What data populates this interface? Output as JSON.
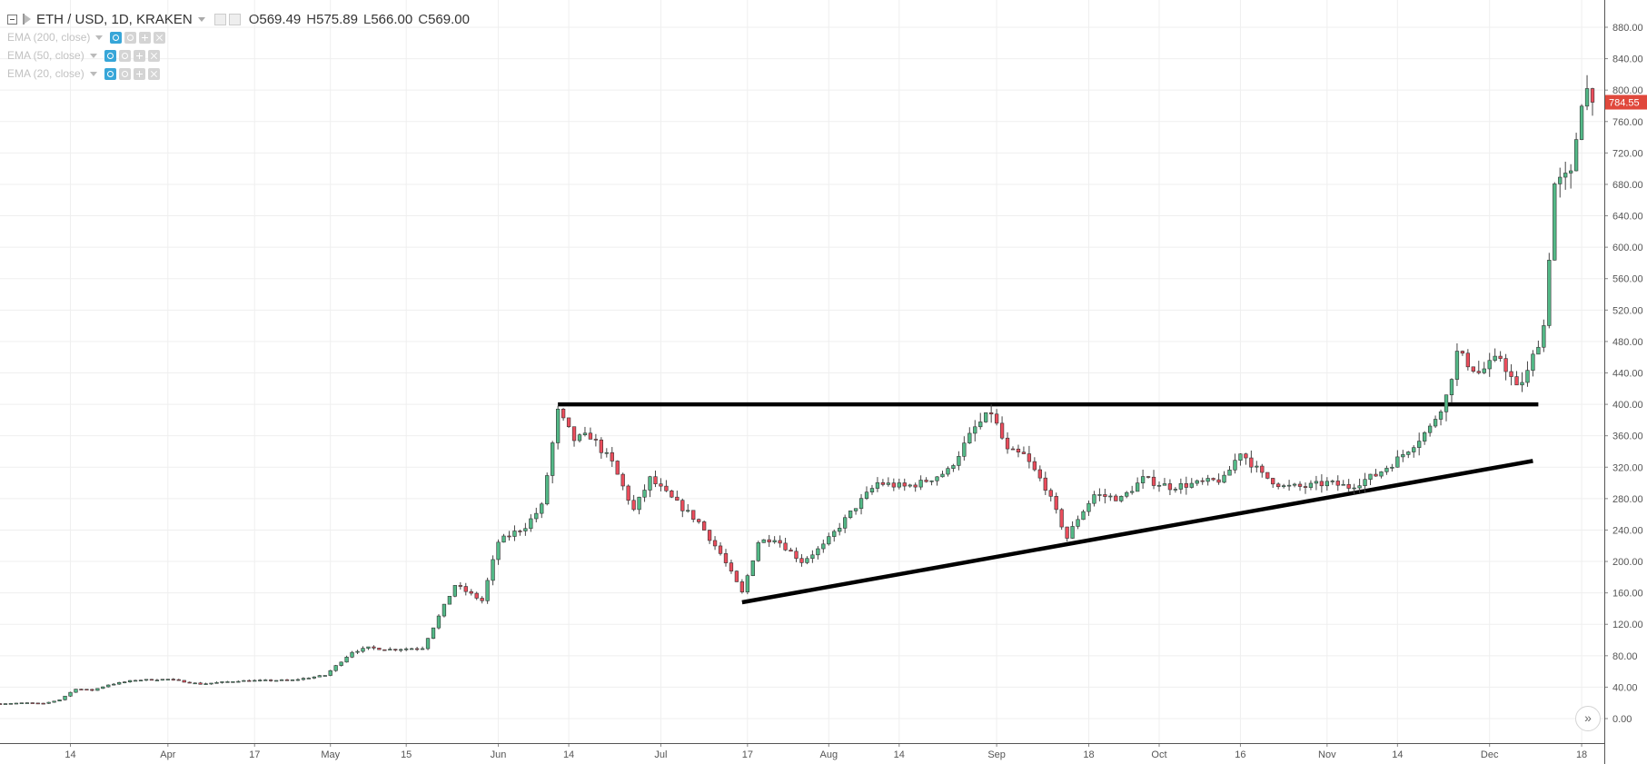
{
  "header": {
    "symbol": "ETH / USD, 1D, KRAKEN",
    "ohlc": [
      {
        "label": "O",
        "value": "569.49"
      },
      {
        "label": "H",
        "value": "575.89"
      },
      {
        "label": "L",
        "value": "566.00"
      },
      {
        "label": "C",
        "value": "569.00"
      }
    ]
  },
  "indicators": [
    {
      "label": "EMA (200, close)"
    },
    {
      "label": "EMA (50, close)"
    },
    {
      "label": "EMA (20, close)"
    }
  ],
  "scroll_button_label": "»",
  "colors": {
    "up": "#53b987",
    "down": "#eb4d5c",
    "grid": "#efefef",
    "price_badge": "#e0483c",
    "axis_text": "#555555"
  },
  "chart_data": {
    "type": "candlestick",
    "symbol": "ETH / USD",
    "interval": "1D",
    "exchange": "KRAKEN",
    "y_axis": {
      "position": "right",
      "range": [
        -10,
        890
      ],
      "ticks": [
        "0.00",
        "40.00",
        "80.00",
        "120.00",
        "160.00",
        "200.00",
        "240.00",
        "280.00",
        "320.00",
        "360.00",
        "400.00",
        "440.00",
        "480.00",
        "520.00",
        "560.00",
        "600.00",
        "640.00",
        "680.00",
        "720.00",
        "760.00",
        "800.00",
        "840.00",
        "880.00"
      ]
    },
    "x_axis": {
      "range": [
        "2017-03-01",
        "2017-12-20"
      ],
      "ticks": [
        {
          "label": "14",
          "date": "2017-03-14"
        },
        {
          "label": "Apr",
          "date": "2017-04-01"
        },
        {
          "label": "17",
          "date": "2017-04-17"
        },
        {
          "label": "May",
          "date": "2017-05-01"
        },
        {
          "label": "15",
          "date": "2017-05-15"
        },
        {
          "label": "Jun",
          "date": "2017-06-01"
        },
        {
          "label": "14",
          "date": "2017-06-14"
        },
        {
          "label": "Jul",
          "date": "2017-07-01"
        },
        {
          "label": "17",
          "date": "2017-07-17"
        },
        {
          "label": "Aug",
          "date": "2017-08-01"
        },
        {
          "label": "14",
          "date": "2017-08-14"
        },
        {
          "label": "Sep",
          "date": "2017-09-01"
        },
        {
          "label": "18",
          "date": "2017-09-18"
        },
        {
          "label": "Oct",
          "date": "2017-10-01"
        },
        {
          "label": "16",
          "date": "2017-10-16"
        },
        {
          "label": "Nov",
          "date": "2017-11-01"
        },
        {
          "label": "14",
          "date": "2017-11-14"
        },
        {
          "label": "Dec",
          "date": "2017-12-01"
        },
        {
          "label": "18",
          "date": "2017-12-18"
        }
      ]
    },
    "grid": true,
    "last_price": "784.55",
    "anchors": [
      {
        "date": "2017-03-01",
        "price": 19
      },
      {
        "date": "2017-03-06",
        "price": 20
      },
      {
        "date": "2017-03-09",
        "price": 19
      },
      {
        "date": "2017-03-12",
        "price": 24
      },
      {
        "date": "2017-03-15",
        "price": 38
      },
      {
        "date": "2017-03-18",
        "price": 36
      },
      {
        "date": "2017-03-21",
        "price": 43
      },
      {
        "date": "2017-03-26",
        "price": 49
      },
      {
        "date": "2017-04-01",
        "price": 50
      },
      {
        "date": "2017-04-07",
        "price": 44
      },
      {
        "date": "2017-04-14",
        "price": 48
      },
      {
        "date": "2017-04-24",
        "price": 49
      },
      {
        "date": "2017-04-30",
        "price": 55
      },
      {
        "date": "2017-05-05",
        "price": 85
      },
      {
        "date": "2017-05-08",
        "price": 90
      },
      {
        "date": "2017-05-12",
        "price": 88
      },
      {
        "date": "2017-05-18",
        "price": 90
      },
      {
        "date": "2017-05-21",
        "price": 130
      },
      {
        "date": "2017-05-24",
        "price": 170
      },
      {
        "date": "2017-05-29",
        "price": 150
      },
      {
        "date": "2017-06-01",
        "price": 225
      },
      {
        "date": "2017-06-06",
        "price": 245
      },
      {
        "date": "2017-06-09",
        "price": 270
      },
      {
        "date": "2017-06-12",
        "price": 390
      },
      {
        "date": "2017-06-15",
        "price": 355
      },
      {
        "date": "2017-06-18",
        "price": 360
      },
      {
        "date": "2017-06-22",
        "price": 325
      },
      {
        "date": "2017-06-26",
        "price": 265
      },
      {
        "date": "2017-06-29",
        "price": 305
      },
      {
        "date": "2017-07-03",
        "price": 280
      },
      {
        "date": "2017-07-08",
        "price": 250
      },
      {
        "date": "2017-07-12",
        "price": 210
      },
      {
        "date": "2017-07-16",
        "price": 160
      },
      {
        "date": "2017-07-19",
        "price": 225
      },
      {
        "date": "2017-07-22",
        "price": 230
      },
      {
        "date": "2017-07-27",
        "price": 200
      },
      {
        "date": "2017-07-31",
        "price": 220
      },
      {
        "date": "2017-08-06",
        "price": 270
      },
      {
        "date": "2017-08-10",
        "price": 300
      },
      {
        "date": "2017-08-15",
        "price": 295
      },
      {
        "date": "2017-08-18",
        "price": 300
      },
      {
        "date": "2017-08-23",
        "price": 315
      },
      {
        "date": "2017-08-28",
        "price": 370
      },
      {
        "date": "2017-08-31",
        "price": 390
      },
      {
        "date": "2017-09-03",
        "price": 340
      },
      {
        "date": "2017-09-06",
        "price": 335
      },
      {
        "date": "2017-09-10",
        "price": 295
      },
      {
        "date": "2017-09-14",
        "price": 230
      },
      {
        "date": "2017-09-16",
        "price": 255
      },
      {
        "date": "2017-09-19",
        "price": 285
      },
      {
        "date": "2017-09-24",
        "price": 280
      },
      {
        "date": "2017-09-28",
        "price": 305
      },
      {
        "date": "2017-10-03",
        "price": 295
      },
      {
        "date": "2017-10-09",
        "price": 300
      },
      {
        "date": "2017-10-13",
        "price": 305
      },
      {
        "date": "2017-10-16",
        "price": 340
      },
      {
        "date": "2017-10-20",
        "price": 310
      },
      {
        "date": "2017-10-24",
        "price": 295
      },
      {
        "date": "2017-10-28",
        "price": 295
      },
      {
        "date": "2017-11-01",
        "price": 300
      },
      {
        "date": "2017-11-05",
        "price": 295
      },
      {
        "date": "2017-11-10",
        "price": 310
      },
      {
        "date": "2017-11-14",
        "price": 330
      },
      {
        "date": "2017-11-20",
        "price": 370
      },
      {
        "date": "2017-11-23",
        "price": 410
      },
      {
        "date": "2017-11-25",
        "price": 465
      },
      {
        "date": "2017-11-29",
        "price": 440
      },
      {
        "date": "2017-12-03",
        "price": 460
      },
      {
        "date": "2017-12-06",
        "price": 420
      },
      {
        "date": "2017-12-08",
        "price": 440
      },
      {
        "date": "2017-12-11",
        "price": 500
      },
      {
        "date": "2017-12-13",
        "price": 680
      },
      {
        "date": "2017-12-16",
        "price": 690
      },
      {
        "date": "2017-12-18",
        "price": 790
      },
      {
        "date": "2017-12-19",
        "price": 800
      },
      {
        "date": "2017-12-20",
        "price": 784.55
      }
    ],
    "annotations": [
      {
        "name": "resistance-line",
        "from": {
          "date": "2017-06-12",
          "price": 400
        },
        "to": {
          "date": "2017-12-10",
          "price": 400
        }
      },
      {
        "name": "ascending-trendline",
        "from": {
          "date": "2017-07-16",
          "price": 148
        },
        "to": {
          "date": "2017-12-09",
          "price": 328
        }
      }
    ]
  }
}
